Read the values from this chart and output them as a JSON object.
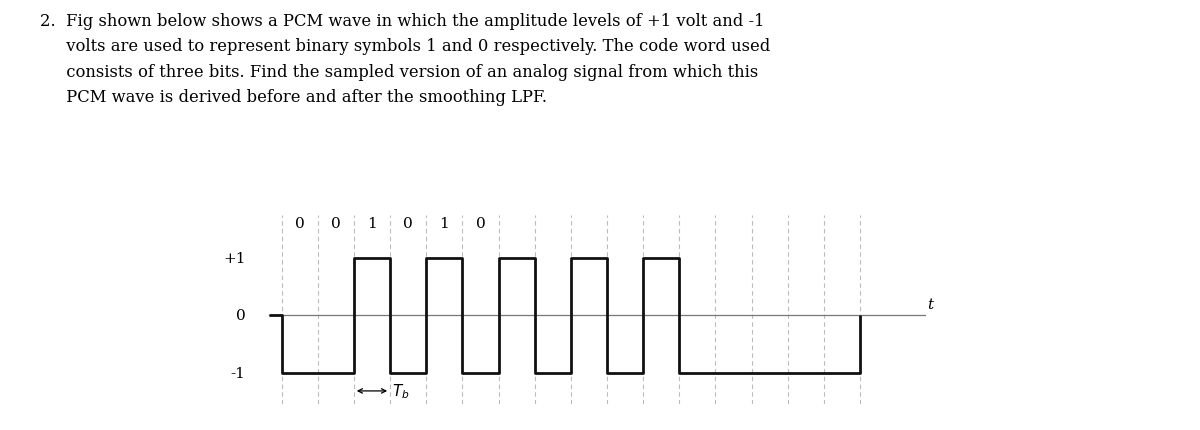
{
  "binary_labels": [
    "0",
    "0",
    "1",
    "0",
    "1",
    "0"
  ],
  "bits_sequence": [
    0,
    0,
    1,
    0,
    1,
    0,
    1,
    0,
    1,
    0,
    1,
    0,
    0,
    0,
    0,
    0
  ],
  "ylabel_plus1": "+1",
  "ylabel_0": "0",
  "ylabel_minus1": "-1",
  "t_label": "t",
  "Tb_label": "$T_b$",
  "ylim": [
    -1.55,
    1.75
  ],
  "white_bg": "#ffffff",
  "blue_bg": "#c5d5e8",
  "line_color": "#111111",
  "axis_color": "#777777",
  "dashed_color": "#bbbbbb",
  "figsize": [
    12.0,
    4.31
  ],
  "dpi": 100,
  "question_line1": "2.  Fig shown below shows a PCM wave in which the amplitude levels of +1 volt and -1",
  "question_line2": "     volts are used to represent binary symbols 1 and 0 respectively. The code word used",
  "question_line3": "     consists of three bits. Find the sampled version of an analog signal from which this",
  "question_line4": "     PCM wave is derived before and after the smoothing LPF."
}
